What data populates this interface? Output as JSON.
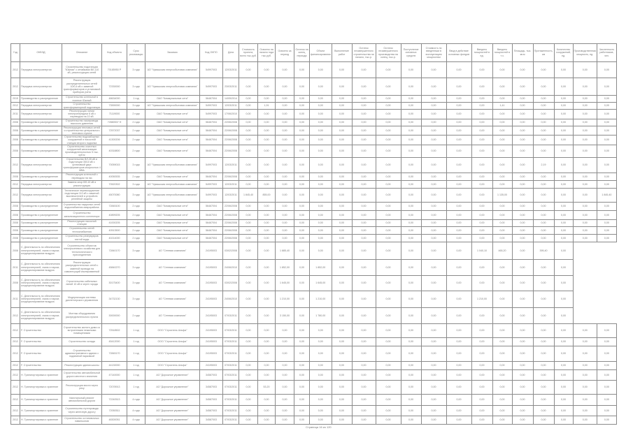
{
  "table": {
    "columns": [
      "Год",
      "ОКВЭД",
      "Описание",
      "Код объекта",
      "Срок реализации",
      "Заказчик",
      "Код ОКПО",
      "Дата",
      "Стоимость проекта, всего тыс.руб.",
      "Освоено на начало года тыс.руб.",
      "Освоено за период",
      "Остаток на конец периода",
      "Объем финансирования",
      "Выполнение работ",
      "Остаток незавершенного строительства на начало, тыс.р.",
      "Остаток незавершенного производства на конец, тыс.р.",
      "Поступление основных средств",
      "Стоимость по введенным в эксплуатацию мощностям",
      "Ввод в действие основных фондов",
      "Введено мощностей в ед.",
      "Введено мощностей в т.ч.",
      "Площадь, тыс. кв.м",
      "Протяженность, км",
      "Количество сооружений, ед.",
      "Производственная мощность, ед.",
      "Численность работников, чел."
    ],
    "rows": [
      [
        "2012",
        "Передача электроэнергии",
        "Строительство подстанции \"Южная\" с отпайками ВЛ-110 кВ, реконструкция сетей",
        "70185950 Р",
        "3 года",
        "АО \"Чувашская энергосбытовая компания\"",
        "54997003",
        "12/03/2011",
        "0,00",
        "0,00",
        "0,00",
        "0,00",
        "0,00",
        "0,00",
        "0,00",
        "0,00",
        "0,00",
        "0,00",
        "0,00",
        "0,00",
        "0,00",
        "0,00",
        "0,00",
        "0,00",
        "0,00",
        "0,00"
      ],
      [
        "2012",
        "Передача электроэнергии",
        "Реконструкция распределительных сетей 10/0,4 кВ с заменой трансформаторов и установкой приборов учета",
        "72330000",
        "3 года",
        "АО \"Чувашская энергосбытовая компания\"",
        "54997003",
        "23/03/2011",
        "0,00",
        "0,00",
        "0,00",
        "0,00",
        "0,00",
        "0,00",
        "0,00",
        "0,00",
        "0,00",
        "0,00",
        "0,00",
        "0,00",
        "0,00",
        "0,00",
        "0,00",
        "0,00",
        "0,00",
        "0,00"
      ],
      [
        "2015",
        "Производство и распределение",
        "Строительство котельной в поселке Южный",
        "48634000",
        "1 год",
        "ОАО \"Коммунальные сети\"",
        "56467004",
        "14/05/2014",
        "0,00",
        "0,00",
        "0,00",
        "0,00",
        "0,00",
        "0,00",
        "0,00",
        "0,00",
        "0,00",
        "0,00",
        "0,00",
        "0,00",
        "0,00",
        "0,00",
        "0,00",
        "0,00",
        "0,00",
        "0,00"
      ],
      [
        "2012",
        "Передача электроэнергии",
        "Строительство трансформаторной подстанции",
        "73590000",
        "3 года",
        "АО \"Чувашская энергосбытовая компания\"",
        "54997003",
        "12/03/2011",
        "0,00",
        "1,91",
        "0,00",
        "0,00",
        "0,00",
        "0,00",
        "0,00",
        "0,00",
        "0,00",
        "0,00",
        "0,00",
        "0,00",
        "1,41",
        "0,00",
        "0,00",
        "0,00",
        "0,00",
        "0,00"
      ],
      [
        "2011",
        "Передача электроэнергии",
        "Реконструкция линии электропередачи 6 кВ с переводом на 10 кВ",
        "71119000",
        "2 года",
        "ОАО \"Коммунальные сети\"",
        "54997003",
        "17/06/2010",
        "0,00",
        "0,00",
        "0,00",
        "0,00",
        "0,00",
        "0,00",
        "0,00",
        "0,00",
        "0,00",
        "0,00",
        "0,00",
        "0,00",
        "0,00",
        "0,00",
        "0,00",
        "0,00",
        "0,00",
        "0,00"
      ],
      [
        "2008",
        "Производство и распределение",
        "Строительство газопровода высокого давления",
        "72880537 Н",
        "2 года",
        "ОАО \"Коммунальные сети\"",
        "56467004",
        "22/06/2008",
        "0,00",
        "0,00",
        "0,00",
        "0,00",
        "0,00",
        "0,00",
        "0,00",
        "0,00",
        "0,00",
        "0,00",
        "0,00",
        "0,00",
        "0,00",
        "0,00",
        "0,00",
        "0,00",
        "0,00",
        "0,00"
      ],
      [
        "2008",
        "Производство и распределение",
        "Реконструкция тепловых сетей и строительство центрального теплового пункта",
        "72572037",
        "2 года",
        "ОАО \"Коммунальные сети\"",
        "56467004",
        "22/06/2008",
        "0,00",
        "0,00",
        "0,00",
        "0,00",
        "0,00",
        "0,00",
        "0,00",
        "0,00",
        "0,00",
        "0,00",
        "0,00",
        "0,00",
        "0,00",
        "0,00",
        "0,00",
        "0,00",
        "0,00",
        "0,00"
      ],
      [
        "2008",
        "Производство и распределение",
        "Строительство водозаборных сооружений и насосной станции второго подъема",
        "41300206",
        "2 года",
        "ОАО \"Коммунальные сети\"",
        "56467004",
        "22/06/2008",
        "0,00",
        "0,00",
        "0,00",
        "0,00",
        "0,00",
        "0,00",
        "0,00",
        "0,00",
        "0,00",
        "0,00",
        "0,00",
        "0,00",
        "0,00",
        "0,00",
        "0,00",
        "0,00",
        "0,00",
        "0,00"
      ],
      [
        "2008",
        "Производство и распределение",
        "Строительство очистных сооружений канализации производительностью 5 тыс. куб.м",
        "40318800",
        "2 года",
        "ОАО \"Коммунальные сети\"",
        "56467004",
        "22/06/2008",
        "0,00",
        "0,00",
        "0,00",
        "0,00",
        "0,00",
        "0,00",
        "0,00",
        "0,00",
        "0,00",
        "0,00",
        "0,00",
        "0,00",
        "0,00",
        "0,00",
        "0,00",
        "0,00",
        "0,00",
        "0,00"
      ],
      [
        "2012",
        "Передача электроэнергии",
        "Строительство ВЛ-35 кВ и подстанции 35/10 кВ с установкой двух трансформаторов мощностью 4 МВА",
        "70059015",
        "3 года",
        "АО \"Чувашская энергосбытовая компания\"",
        "54997003",
        "12/03/2011",
        "0,00",
        "0,00",
        "0,00",
        "0,00",
        "0,00",
        "0,00",
        "0,00",
        "0,00",
        "0,00",
        "0,00",
        "0,00",
        "0,00",
        "0,00",
        "0,00",
        "2,19",
        "0,00",
        "0,00",
        "0,00"
      ],
      [
        "2008",
        "Производство и распределение",
        "Реконструкция котельной с переводом на газ",
        "40050535",
        "2 года",
        "ОАО \"Коммунальные сети\"",
        "56467004",
        "22/06/2008",
        "0,00",
        "0,00",
        "0,00",
        "0,00",
        "0,00",
        "0,00",
        "0,00",
        "0,00",
        "0,00",
        "0,00",
        "0,00",
        "0,00",
        "0,00",
        "0,00",
        "0,00",
        "0,00",
        "0,00",
        "0,00"
      ],
      [
        "2012",
        "Передача электроэнергии",
        "Замена опор ВЛ-10 кВ и реконструкция",
        "70520302",
        "3 года",
        "АО \"Чувашская энергосбытовая компания\"",
        "54997003",
        "12/03/2011",
        "0,00",
        "0,00",
        "0,00",
        "0,00",
        "0,00",
        "0,00",
        "0,00",
        "0,00",
        "0,00",
        "0,00",
        "0,00",
        "0,00",
        "0,00",
        "0,00",
        "0,00",
        "0,00",
        "0,00",
        "0,00"
      ],
      [
        "2012",
        "Передача электроэнергии",
        "Техническое перевооружение подстанции 110 кВ с заменой выключателей и устройств релейной защиты",
        "45070080",
        "3 года",
        "АО \"Чувашская энергосбытовая компания\"",
        "54997003",
        "12/03/2011",
        "1 845,40",
        "855,00",
        "0,00",
        "0,00",
        "0,00",
        "0,00",
        "0,00",
        "0,00",
        "0,00",
        "0,00",
        "0,00",
        "0,00",
        "1 135,00",
        "0,00",
        "0,00",
        "0,00",
        "0,00",
        "1 845,40"
      ],
      [
        "2008",
        "Производство и распределение",
        "Строительство наружных сетей водоснабжения микрорайона",
        "72845100",
        "2 года",
        "ОАО \"Коммунальные сети\"",
        "56467004",
        "22/06/2008",
        "0,00",
        "0,00",
        "0,00",
        "0,00",
        "0,00",
        "0,00",
        "0,00",
        "0,00",
        "0,00",
        "0,00",
        "0,00",
        "0,00",
        "0,00",
        "0,00",
        "0,00",
        "0,00",
        "0,00",
        "0,00"
      ],
      [
        "2008",
        "Производство и распределение",
        "Строительство канализационного коллектора",
        "40899205",
        "2 года",
        "ОАО \"Коммунальные сети\"",
        "56467004",
        "22/06/2008",
        "0,00",
        "0,00",
        "0,00",
        "0,00",
        "0,00",
        "0,00",
        "0,00",
        "0,00",
        "0,00",
        "0,00",
        "0,00",
        "0,00",
        "0,00",
        "0,00",
        "0,00",
        "0,00",
        "0,00",
        "0,00"
      ],
      [
        "2008",
        "Производство и распределение",
        "Реконструкция насосной станции",
        "41000205",
        "2 года",
        "ОАО \"Коммунальные сети\"",
        "56467004",
        "22/06/2008",
        "0,00",
        "0,00",
        "0,00",
        "0,00",
        "0,00",
        "0,00",
        "0,00",
        "0,00",
        "0,00",
        "0,00",
        "0,00",
        "0,00",
        "0,00",
        "0,00",
        "0,00",
        "0,00",
        "0,00",
        "0,00"
      ],
      [
        "2008",
        "Производство и распределение",
        "Строительство сетей теплоснабжения",
        "40513500",
        "2 года",
        "ОАО \"Коммунальные сети\"",
        "56467004",
        "22/06/2008",
        "0,00",
        "0,00",
        "0,00",
        "0,00",
        "0,00",
        "0,00",
        "0,00",
        "0,00",
        "0,00",
        "0,00",
        "0,00",
        "0,00",
        "0,00",
        "0,00",
        "0,00",
        "0,00",
        "0,00",
        "0,00"
      ],
      [
        "2008",
        "Производство и распределение",
        "Строительство резервуаров чистой воды",
        "40214000",
        "2 года",
        "ОАО \"Коммунальные сети\"",
        "56467004",
        "22/06/2008",
        "0,00",
        "0,00",
        "0,00",
        "0,00",
        "0,00",
        "0,00",
        "0,00",
        "0,00",
        "0,00",
        "0,00",
        "0,00",
        "0,00",
        "0,00",
        "0,00",
        "0,00",
        "0,00",
        "0,00",
        "0,00"
      ],
      [
        "2008",
        "С. Деятельность по обеспечению электроэнергией, газом и паром; кондиционирование воздуха",
        "Строительство объектов электросетевого хозяйства для технологического присоединения",
        "72840170",
        "3 года",
        "АО \"Сетевая компания\"",
        "24195003",
        "03/02/2008",
        "0,00",
        "0,00",
        "1 885,40",
        "0,00",
        "0,00",
        "0,00",
        "0,00",
        "0,00",
        "0,00",
        "0,00",
        "0,00",
        "1 040,10",
        "465,20",
        "0,00",
        "395,40",
        "0,00"
      ],
      [
        "2011",
        "С. Деятельность по обеспечению электроэнергией, газом и паром; кондиционирование воздуха",
        "Реконструкция распределительных сетей с заменой провода на самонесущий изолированный",
        "45840270",
        "3 года",
        "АО \"Сетевая компания\"",
        "24195003",
        "24/06/2010",
        "0,00",
        "0,00",
        "1 852,00",
        "0,00",
        "1 852,00",
        "0,00",
        "0,00",
        "0,00",
        "0,00",
        "0,00",
        "0,00",
        "0,00",
        "0,00",
        "0,00",
        "0,00",
        "0,00"
      ],
      [
        "2008",
        "С. Деятельность по обеспечению электроэнергией, газом и паром; кондиционирование воздуха",
        "Строительство кабельных линий 10 кВ в черте города",
        "30175400",
        "3 года",
        "АО \"Сетевая компания\"",
        "24195003",
        "03/02/2008",
        "0,00",
        "0,00",
        "1 645,00",
        "0,00",
        "1 645,00",
        "0,00",
        "0,00",
        "0,00",
        "0,00",
        "0,00",
        "0,00",
        "0,00",
        "0,00",
        "0,00",
        "0,00",
        "0,00"
      ],
      [
        "2011",
        "С. Деятельность по обеспечению электроэнергией, газом и паром; кондиционирование воздуха",
        "Модернизация системы диспетчерского управления",
        "34732130",
        "3 года",
        "АО \"Сетевая компания\"",
        "24195003",
        "24/06/2010",
        "0,00",
        "0,00",
        "1 210,00",
        "0,00",
        "1 210,00",
        "0,00",
        "0,00",
        "0,00",
        "0,00",
        "0,00",
        "0,00",
        "1 210,00",
        "0,00",
        "0,00",
        "0,00",
        "0,00"
      ],
      [
        "2012",
        "С. Деятельность по обеспечению электроэнергией, газом и паром; кондиционирование воздуха",
        "Монтаж оборудования распределительного пункта",
        "30000000",
        "2 года",
        "АО \"Сетевая компания\"",
        "24195003",
        "07/03/2011",
        "0,00",
        "0,00",
        "3 150,00",
        "0,00",
        "1 780,00",
        "0,00",
        "0,00",
        "0,00",
        "0,00",
        "0,00",
        "0,00",
        "0,00",
        "0,00",
        "0,00",
        "0,00",
        "0,00"
      ],
      [
        "2012",
        "F. Строительство",
        "Строительство жилого дома со встроенными нежилыми помещениями",
        "72518502",
        "1 год",
        "ООО \"Строитель Альфа\"",
        "24195003",
        "07/03/2011",
        "0,00",
        "0,00",
        "0,00",
        "0,00",
        "0,00",
        "0,00",
        "0,00",
        "0,00",
        "0,00",
        "0,00",
        "0,00",
        "0,00",
        "0,00",
        "0,00",
        "0,00",
        "0,00",
        "0,00",
        "0,00"
      ],
      [
        "2012",
        "F. Строительство",
        "Строительство склада",
        "45412000",
        "1 год",
        "ООО \"Строитель Альфа\"",
        "24195003",
        "07/03/2011",
        "0,00",
        "0,00",
        "0,00",
        "0,00",
        "0,00",
        "0,00",
        "0,00",
        "0,00",
        "0,00",
        "0,00",
        "0,00",
        "0,00",
        "0,00",
        "0,00",
        "0,00",
        "0,00",
        "0,00",
        "0,00"
      ],
      [
        "2012",
        "F. Строительство",
        "Строительство административного здания с подземной парковкой",
        "72845170",
        "1 год",
        "ООО \"Строитель Альфа\"",
        "24195003",
        "07/03/2011",
        "0,00",
        "0,00",
        "0,00",
        "0,00",
        "0,00",
        "0,00",
        "0,00",
        "0,00",
        "0,00",
        "0,00",
        "0,00",
        "0,00",
        "0,00",
        "0,00",
        "0,00",
        "0,00",
        "0,00",
        "0,00"
      ],
      [
        "2012",
        "F. Строительство",
        "Реконструкция здания школы",
        "44130000",
        "1 год",
        "ООО \"Строитель Альфа\"",
        "24195003",
        "07/03/2011",
        "0,00",
        "0,00",
        "0,00",
        "0,00",
        "0,00",
        "0,00",
        "0,00",
        "0,00",
        "0,00",
        "0,00",
        "0,00",
        "0,00",
        "0,00",
        "0,00",
        "0,00",
        "0,00",
        "0,00",
        "0,00"
      ],
      [
        "2012",
        "Н. Транспортировка и хранение",
        "Строительство автомобильной дороги местного значения",
        "47140000",
        "1 год",
        "АО \"Дорожное управление\"",
        "34587003",
        "07/03/2011",
        "0,00",
        "0,00",
        "0,00",
        "0,00",
        "0,00",
        "0,00",
        "0,00",
        "0,00",
        "0,00",
        "0,00",
        "0,00",
        "0,00",
        "0,00",
        "0,00",
        "0,00",
        "0,00",
        "0,00",
        "0,00"
      ],
      [
        "2012",
        "Н. Транспортировка и хранение",
        "Реконструкция моста через реку",
        "72078913",
        "1 год",
        "АО \"Дорожное управление\"",
        "34587003",
        "07/03/2011",
        "0,00",
        "53,20",
        "0,00",
        "0,00",
        "0,00",
        "0,00",
        "0,00",
        "0,00",
        "0,00",
        "0,00",
        "0,00",
        "0,00",
        "0,00",
        "0,00",
        "0,00",
        "0,00",
        "0,00",
        "0,00"
      ],
      [
        "2012",
        "Н. Транспортировка и хранение",
        "Капитальный ремонт автомобильной дороги",
        "72240513",
        "4 года",
        "АО \"Дорожное управление\"",
        "34587003",
        "07/03/2011",
        "0,00",
        "0,00",
        "0,00",
        "0,00",
        "0,00",
        "0,00",
        "0,00",
        "0,00",
        "0,00",
        "0,00",
        "0,00",
        "0,00",
        "0,00",
        "0,00",
        "0,00",
        "0,00",
        "0,00",
        "0,00"
      ],
      [
        "2012",
        "Н. Транспортировка и хранение",
        "Строительство путепровода через железную дорогу",
        "72050511",
        "4 года",
        "АО \"Дорожное управление\"",
        "34587003",
        "07/03/2011",
        "0,00",
        "0,00",
        "0,00",
        "0,00",
        "0,00",
        "0,00",
        "0,00",
        "0,00",
        "0,00",
        "0,00",
        "0,00",
        "0,00",
        "0,00",
        "0,00",
        "0,00",
        "0,00",
        "0,00",
        "0,00"
      ],
      [
        "2012",
        "Н. Транспортировка и хранение",
        "Строительство остановочных павильонов",
        "48300051",
        "4 года",
        "АО \"Дорожное управление\"",
        "34587003",
        "07/03/2011",
        "0,00",
        "0,00",
        "0,00",
        "0,00",
        "0,00",
        "0,00",
        "0,00",
        "0,00",
        "0,00",
        "0,00",
        "0,00",
        "0,00",
        "0,00",
        "0,00",
        "0,00",
        "0,00",
        "0,00",
        "0,00"
      ]
    ]
  },
  "footer": {
    "page_label": "Страница 16 из 120"
  }
}
